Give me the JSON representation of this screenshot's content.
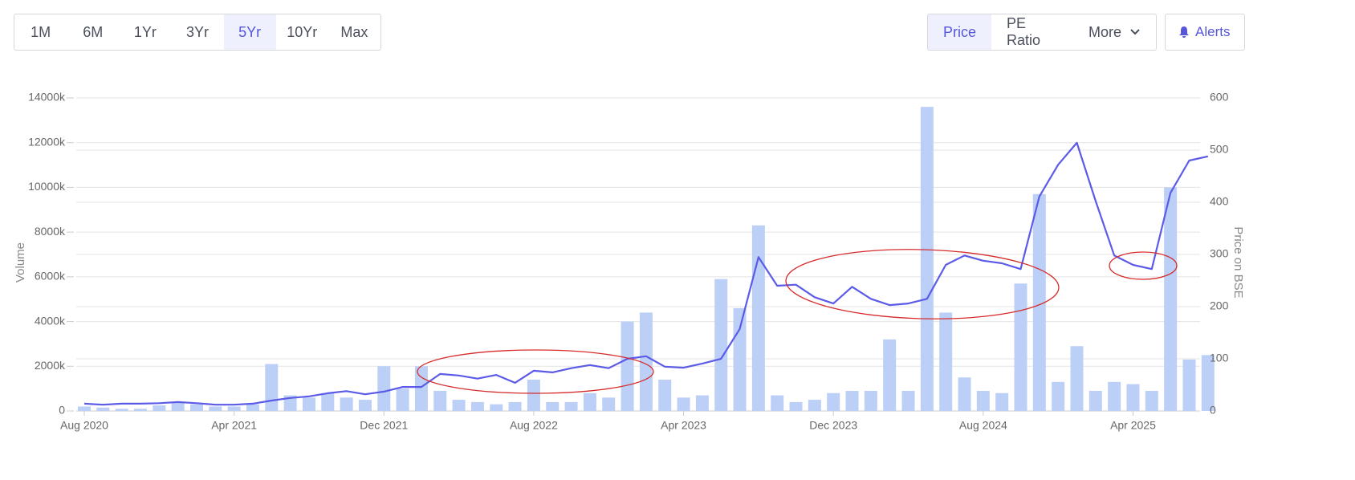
{
  "toolbar": {
    "ranges": [
      "1M",
      "6M",
      "1Yr",
      "3Yr",
      "5Yr",
      "10Yr",
      "Max"
    ],
    "active_range": 4,
    "views": [
      "Price",
      "PE Ratio"
    ],
    "active_view": 0,
    "more": "More",
    "alerts": "Alerts"
  },
  "chart_data": {
    "type": "combo",
    "ylabel": "Volume",
    "y2label": "Price on BSE",
    "x": [
      "2020-08",
      "2020-09",
      "2020-10",
      "2020-11",
      "2020-12",
      "2021-01",
      "2021-02",
      "2021-03",
      "2021-04",
      "2021-05",
      "2021-06",
      "2021-07",
      "2021-08",
      "2021-09",
      "2021-10",
      "2021-11",
      "2021-12",
      "2022-01",
      "2022-02",
      "2022-03",
      "2022-04",
      "2022-05",
      "2022-06",
      "2022-07",
      "2022-08",
      "2022-09",
      "2022-10",
      "2022-11",
      "2022-12",
      "2023-01",
      "2023-02",
      "2023-03",
      "2023-04",
      "2023-05",
      "2023-06",
      "2023-07",
      "2023-08",
      "2023-09",
      "2023-10",
      "2023-11",
      "2023-12",
      "2024-01",
      "2024-02",
      "2024-03",
      "2024-04",
      "2024-05",
      "2024-06",
      "2024-07",
      "2024-08",
      "2024-09",
      "2024-10",
      "2024-11",
      "2024-12",
      "2025-01",
      "2025-02",
      "2025-03",
      "2025-04",
      "2025-05",
      "2025-06",
      "2025-07",
      "2025-08"
    ],
    "series": [
      {
        "type": "bar",
        "color": "#bcd0f7",
        "values": [
          200,
          150,
          100,
          100,
          250,
          400,
          300,
          200,
          200,
          300,
          2100,
          700,
          600,
          800,
          600,
          500,
          2000,
          1000,
          2000,
          900,
          500,
          400,
          300,
          400,
          1400,
          400,
          400,
          800,
          600,
          4000,
          4400,
          1400,
          600,
          700,
          5900,
          4600,
          8300,
          700,
          400,
          500,
          800,
          900,
          900,
          3200,
          900,
          13600,
          4400,
          1500,
          900,
          800,
          5700,
          9700,
          1300,
          2900,
          900,
          1300,
          1200,
          900,
          10000,
          2300,
          2500
        ]
      },
      {
        "type": "line",
        "color": "#5b5be8",
        "axis": "y2",
        "values": [
          14,
          12,
          14,
          14,
          15,
          17,
          15,
          12,
          12,
          14,
          20,
          25,
          28,
          34,
          38,
          32,
          37,
          46,
          46,
          71,
          68,
          62,
          69,
          54,
          77,
          74,
          82,
          88,
          82,
          100,
          105,
          85,
          83,
          91,
          100,
          157,
          295,
          240,
          242,
          218,
          206,
          238,
          215,
          203,
          206,
          215,
          280,
          298,
          288,
          283,
          272,
          411,
          472,
          514,
          403,
          298,
          280,
          272,
          418,
          480,
          488
        ]
      }
    ],
    "ylim": [
      0,
      14000
    ],
    "yticks": [
      0,
      {
        "value": 2000,
        "label": "2000k"
      },
      {
        "value": 4000,
        "label": "4000k"
      },
      {
        "value": 6000,
        "label": "6000k"
      },
      {
        "value": 8000,
        "label": "8000k"
      },
      {
        "value": 10000,
        "label": "10000k"
      },
      {
        "value": 12000,
        "label": "12000k"
      },
      {
        "value": 14000,
        "label": "14000k"
      }
    ],
    "y2lim": [
      0,
      600
    ],
    "y2ticks": [
      0,
      100,
      200,
      300,
      400,
      500,
      600
    ],
    "xticks": [
      {
        "value": "2020-08",
        "label": "Aug 2020"
      },
      {
        "value": "2021-04",
        "label": "Apr 2021"
      },
      {
        "value": "2021-12",
        "label": "Dec 2021"
      },
      {
        "value": "2022-08",
        "label": "Aug 2022"
      },
      {
        "value": "2023-04",
        "label": "Apr 2023"
      },
      {
        "value": "2023-12",
        "label": "Dec 2023"
      },
      {
        "value": "2024-08",
        "label": "Aug 2024"
      },
      {
        "value": "2025-04",
        "label": "Apr 2025"
      }
    ],
    "grid": true
  }
}
